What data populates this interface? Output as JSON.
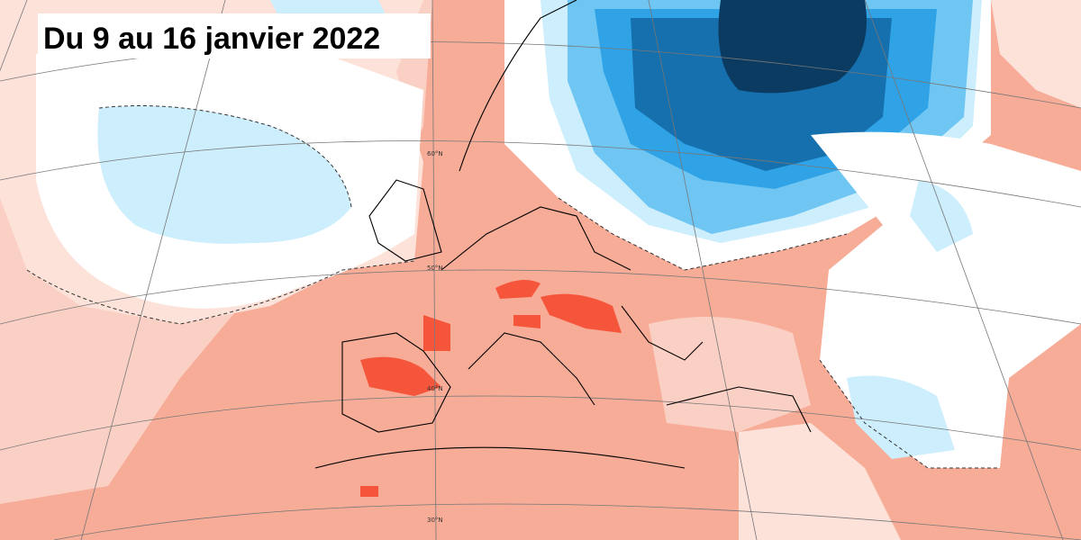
{
  "title": "Du 9 au 16 janvier 2022",
  "latitude_labels": [
    "60°N",
    "50°N",
    "40°N",
    "30°N"
  ]
}
